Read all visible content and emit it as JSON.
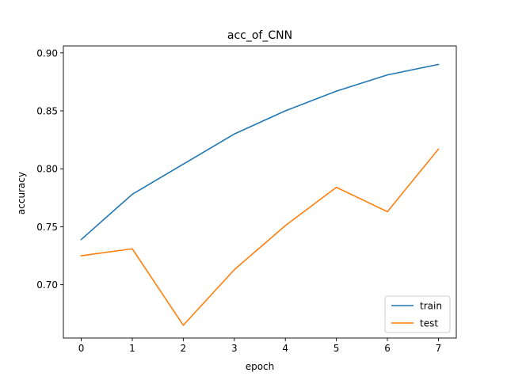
{
  "chart_data": {
    "type": "line",
    "title": "acc_of_CNN",
    "xlabel": "epoch",
    "ylabel": "accuracy",
    "x": [
      0,
      1,
      2,
      3,
      4,
      5,
      6,
      7
    ],
    "xlim": [
      -0.35,
      7.35
    ],
    "ylim": [
      0.654,
      0.906
    ],
    "xticks": [
      0,
      1,
      2,
      3,
      4,
      5,
      6,
      7
    ],
    "xtick_labels": [
      "0",
      "1",
      "2",
      "3",
      "4",
      "5",
      "6",
      "7"
    ],
    "yticks": [
      0.7,
      0.75,
      0.8,
      0.85,
      0.9
    ],
    "ytick_labels": [
      "0.70",
      "0.75",
      "0.80",
      "0.85",
      "0.90"
    ],
    "grid": false,
    "legend_position": "lower-right",
    "series": [
      {
        "name": "train",
        "color": "#1f77b4",
        "values": [
          0.739,
          0.778,
          0.804,
          0.83,
          0.85,
          0.867,
          0.881,
          0.89
        ]
      },
      {
        "name": "test",
        "color": "#ff7f0e",
        "values": [
          0.725,
          0.731,
          0.665,
          0.713,
          0.751,
          0.784,
          0.763,
          0.817
        ]
      }
    ]
  }
}
